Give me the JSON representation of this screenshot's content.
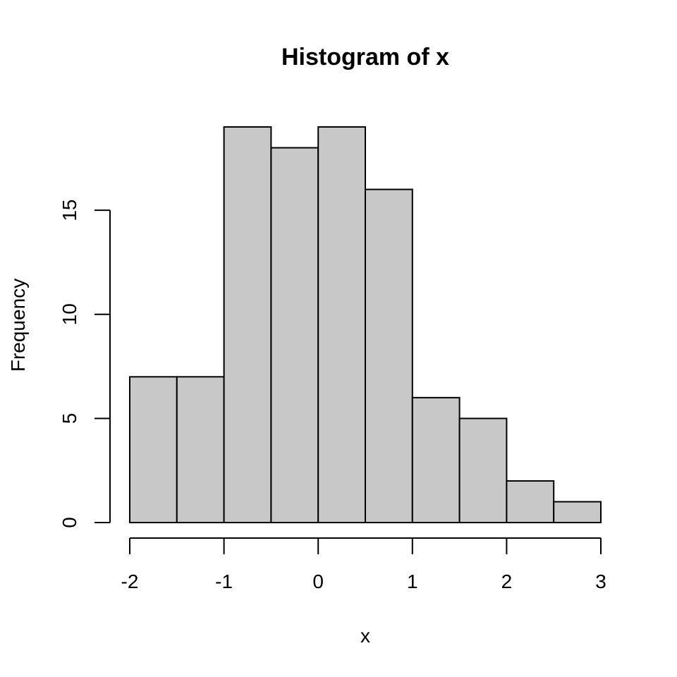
{
  "chart_data": {
    "type": "bar",
    "title": "Histogram of x",
    "xlabel": "x",
    "ylabel": "Frequency",
    "bins": [
      {
        "from": -2.0,
        "to": -1.5,
        "value": 7
      },
      {
        "from": -1.5,
        "to": -1.0,
        "value": 7
      },
      {
        "from": -1.0,
        "to": -0.5,
        "value": 19
      },
      {
        "from": -0.5,
        "to": 0.0,
        "value": 18
      },
      {
        "from": 0.0,
        "to": 0.5,
        "value": 19
      },
      {
        "from": 0.5,
        "to": 1.0,
        "value": 16
      },
      {
        "from": 1.0,
        "to": 1.5,
        "value": 6
      },
      {
        "from": 1.5,
        "to": 2.0,
        "value": 5
      },
      {
        "from": 2.0,
        "to": 2.5,
        "value": 2
      },
      {
        "from": 2.5,
        "to": 3.0,
        "value": 1
      }
    ],
    "xlim": [
      -2,
      3
    ],
    "ylim": [
      0,
      19
    ],
    "x_ticks": [
      "-2",
      "-1",
      "0",
      "1",
      "2",
      "3"
    ],
    "y_ticks": [
      "0",
      "5",
      "10",
      "15"
    ],
    "bar_fill": "#c8c8c8",
    "bar_stroke": "#000000",
    "grid": false,
    "legend": "none"
  }
}
